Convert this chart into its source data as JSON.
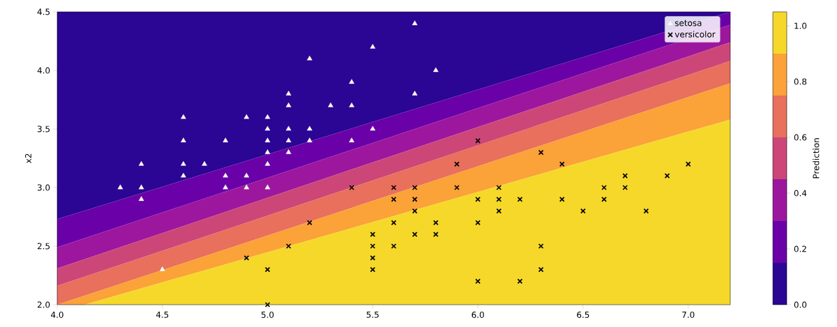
{
  "chart_data": {
    "type": "scatter",
    "ylabel": "x2",
    "clabel": "Prediction",
    "xlim": [
      4.0,
      7.2
    ],
    "ylim": [
      2.0,
      4.5
    ],
    "xticks": [
      {
        "value": 4.0,
        "label": "4.0"
      },
      {
        "value": 4.5,
        "label": "4.5"
      },
      {
        "value": 5.0,
        "label": "5.0"
      },
      {
        "value": 5.5,
        "label": "5.5"
      },
      {
        "value": 6.0,
        "label": "6.0"
      },
      {
        "value": 6.5,
        "label": "6.5"
      },
      {
        "value": 7.0,
        "label": "7.0"
      }
    ],
    "yticks": [
      {
        "value": 2.0,
        "label": "2.0"
      },
      {
        "value": 2.5,
        "label": "2.5"
      },
      {
        "value": 3.0,
        "label": "3.0"
      },
      {
        "value": 3.5,
        "label": "3.5"
      },
      {
        "value": 4.0,
        "label": "4.0"
      },
      {
        "value": 4.5,
        "label": "4.5"
      }
    ],
    "clim": [
      0,
      1.05
    ],
    "cticks": [
      {
        "value": 0,
        "label": "0.0"
      },
      {
        "value": 0.2,
        "label": "0.2"
      },
      {
        "value": 0.4,
        "label": "0.4"
      },
      {
        "value": 0.6,
        "label": "0.6"
      },
      {
        "value": 0.8,
        "label": "0.8"
      },
      {
        "value": 1.0,
        "label": "1.0"
      }
    ],
    "legend": "top right",
    "grid": false,
    "series": [
      {
        "type": "area",
        "color": "#2b0593",
        "x": [
          4.0,
          7.2
        ],
        "values": [
          4.5,
          4.5
        ]
      },
      {
        "type": "area",
        "color": "#6a00a8",
        "x": [
          4.0,
          7.2
        ],
        "values": [
          2.73,
          4.5
        ]
      },
      {
        "type": "area",
        "color": "#9c179e",
        "x": [
          4.0,
          7.2
        ],
        "values": [
          2.49,
          4.39
        ]
      },
      {
        "type": "area",
        "color": "#cc4778",
        "x": [
          4.0,
          7.2
        ],
        "values": [
          2.31,
          4.24
        ]
      },
      {
        "type": "area",
        "color": "#e8705c",
        "x": [
          4.0,
          7.2
        ],
        "values": [
          2.16,
          4.08
        ]
      },
      {
        "type": "area",
        "color": "#fba238",
        "x": [
          4.0,
          7.2
        ],
        "values": [
          2.0,
          3.89
        ]
      },
      {
        "type": "area",
        "color": "#f5d82a",
        "x": [
          4.13,
          7.2
        ],
        "values": [
          2.0,
          3.58
        ]
      },
      {
        "type": "scatter",
        "name": "setosa",
        "color": "#ffffff",
        "marker": "triangle",
        "x": [
          4.3,
          4.4,
          4.4,
          4.4,
          4.5,
          4.6,
          4.6,
          4.6,
          4.6,
          4.7,
          4.8,
          4.8,
          4.8,
          4.9,
          4.9,
          4.9,
          5.0,
          5.0,
          5.0,
          5.0,
          5.0,
          5.0,
          5.1,
          5.1,
          5.1,
          5.1,
          5.1,
          5.2,
          5.2,
          5.2,
          5.3,
          5.4,
          5.4,
          5.4,
          5.5,
          5.5,
          5.7,
          5.7,
          5.8
        ],
        "values": [
          3.0,
          3.2,
          3.0,
          2.9,
          2.3,
          3.6,
          3.4,
          3.2,
          3.1,
          3.2,
          3.4,
          3.1,
          3.0,
          3.6,
          3.1,
          3.0,
          3.6,
          3.5,
          3.4,
          3.3,
          3.2,
          3.0,
          3.8,
          3.7,
          3.5,
          3.4,
          3.3,
          4.1,
          3.5,
          3.4,
          3.7,
          3.9,
          3.7,
          3.4,
          4.2,
          3.5,
          4.4,
          3.8,
          4.0
        ]
      },
      {
        "type": "scatter",
        "name": "versicolor",
        "color": "#000000",
        "marker": "cross",
        "x": [
          4.9,
          5.0,
          5.0,
          5.1,
          5.2,
          5.4,
          5.5,
          5.5,
          5.5,
          5.5,
          5.6,
          5.6,
          5.6,
          5.6,
          5.7,
          5.7,
          5.7,
          5.7,
          5.8,
          5.8,
          5.9,
          5.9,
          6.0,
          6.0,
          6.0,
          6.0,
          6.1,
          6.1,
          6.1,
          6.2,
          6.2,
          6.3,
          6.3,
          6.3,
          6.4,
          6.4,
          6.5,
          6.6,
          6.6,
          6.7,
          6.7,
          6.8,
          6.9,
          7.0
        ],
        "values": [
          2.4,
          2.3,
          2.0,
          2.5,
          2.7,
          3.0,
          2.6,
          2.5,
          2.4,
          2.3,
          3.0,
          2.9,
          2.7,
          2.5,
          3.0,
          2.9,
          2.8,
          2.6,
          2.7,
          2.6,
          3.2,
          3.0,
          3.4,
          2.9,
          2.7,
          2.2,
          3.0,
          2.9,
          2.8,
          2.9,
          2.2,
          3.3,
          2.5,
          2.3,
          3.2,
          2.9,
          2.8,
          3.0,
          2.9,
          3.1,
          3.0,
          2.8,
          3.1,
          3.2
        ]
      }
    ]
  }
}
